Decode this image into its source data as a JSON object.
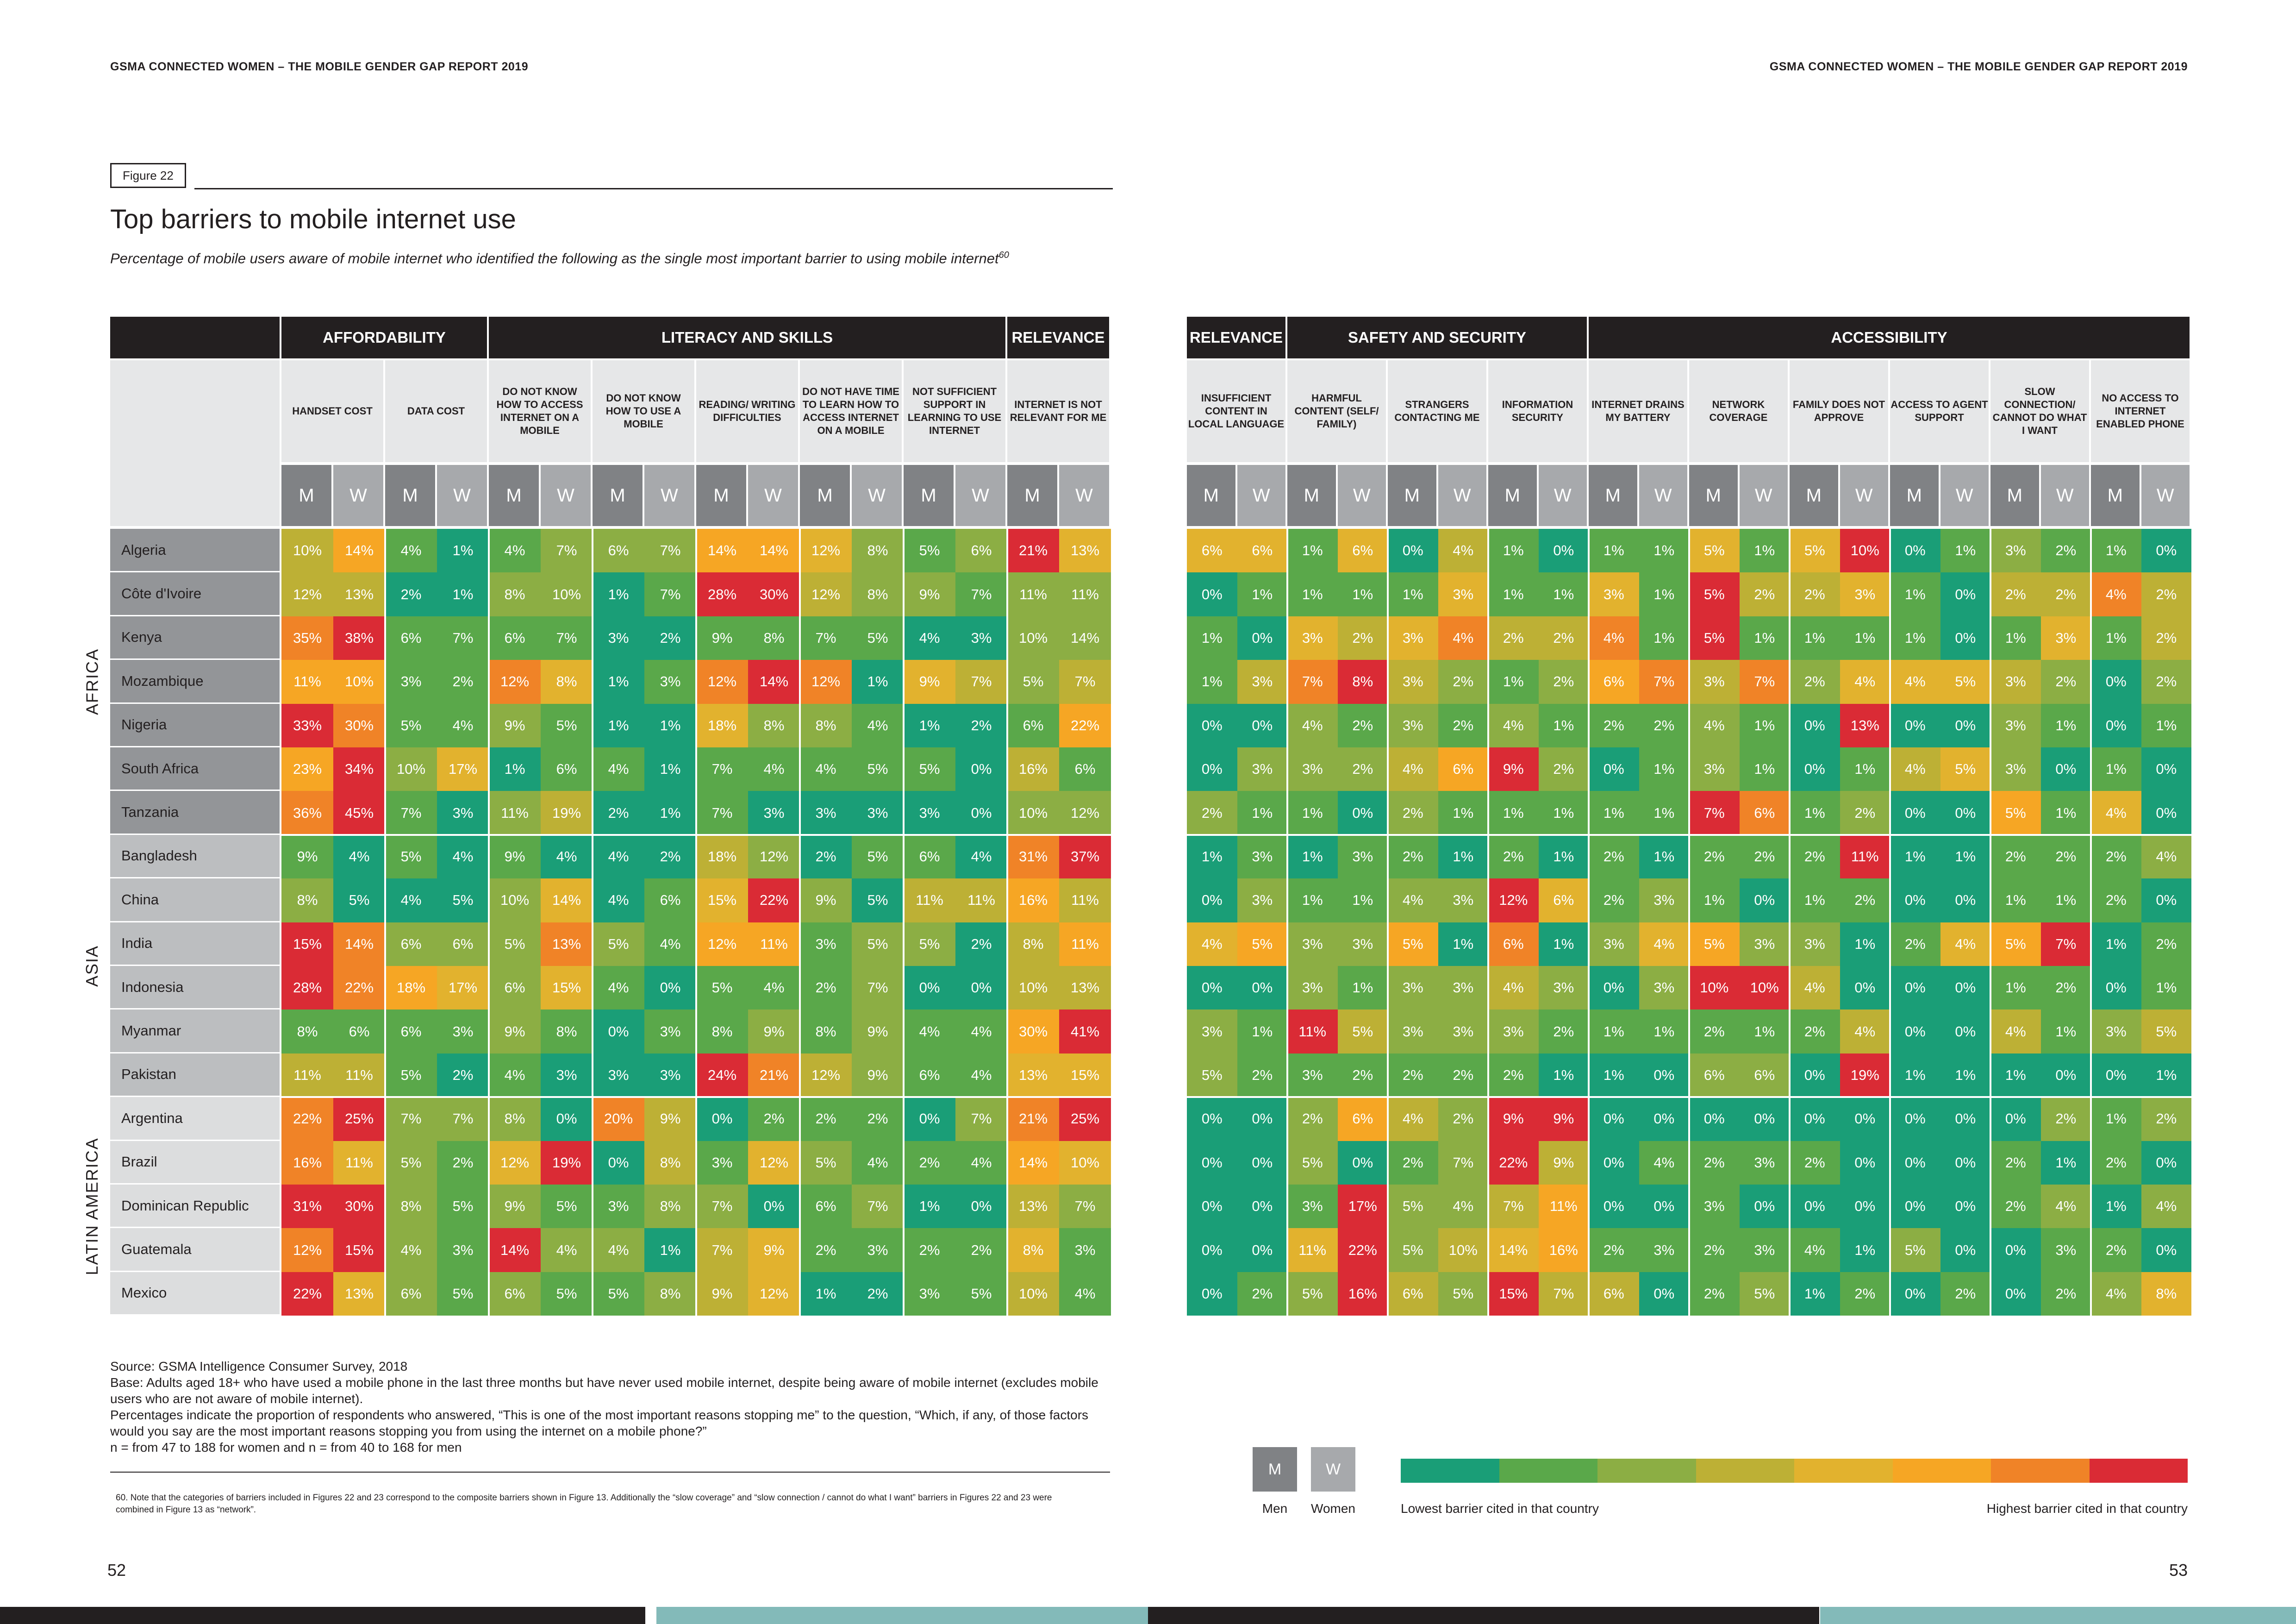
{
  "header": {
    "left": "GSMA CONNECTED WOMEN – THE MOBILE GENDER GAP REPORT 2019",
    "right": "GSMA CONNECTED WOMEN – THE MOBILE GENDER GAP REPORT 2019"
  },
  "figure_label": "Figure 22",
  "title": "Top barriers to mobile internet use",
  "subtitle": "Percentage of mobile users aware of mobile internet who identified the following as the single most important barrier to using mobile internet",
  "subtitle_sup": "60",
  "groups_left": [
    {
      "label": "AFFORDABILITY",
      "span": 2
    },
    {
      "label": "LITERACY AND SKILLS",
      "span": 5
    },
    {
      "label": "RELEVANCE",
      "span": 1
    }
  ],
  "groups_right": [
    {
      "label": "RELEVANCE",
      "span": 1
    },
    {
      "label": "SAFETY AND SECURITY",
      "span": 3
    },
    {
      "label": "ACCESSIBILITY",
      "span": 6
    }
  ],
  "columns_left": [
    "HANDSET COST",
    "DATA COST",
    "DO NOT KNOW HOW TO ACCESS INTERNET ON A MOBILE",
    "DO NOT KNOW HOW TO USE A MOBILE",
    "READING/ WRITING DIFFICULTIES",
    "DO NOT HAVE TIME TO LEARN HOW TO ACCESS INTERNET ON A MOBILE",
    "NOT SUFFICIENT SUPPORT IN LEARNING TO USE INTERNET",
    "INTERNET IS NOT RELEVANT FOR ME"
  ],
  "columns_right": [
    "INSUFFICIENT CONTENT IN LOCAL LANGUAGE",
    "HARMFUL CONTENT (SELF/ FAMILY)",
    "STRANGERS CONTACTING ME",
    "INFORMATION SECURITY",
    "INTERNET DRAINS MY BATTERY",
    "NETWORK COVERAGE",
    "FAMILY DOES NOT APPROVE",
    "ACCESS TO AGENT SUPPORT",
    "SLOW CONNECTION/ CANNOT DO WHAT I WANT",
    "NO ACCESS TO INTERNET ENABLED PHONE"
  ],
  "m_label": "M",
  "w_label": "W",
  "regions": [
    {
      "name": "AFRICA",
      "rows": 7
    },
    {
      "name": "ASIA",
      "rows": 6
    },
    {
      "name": "LATIN AMERICA",
      "rows": 5
    }
  ],
  "countries": [
    "Algeria",
    "Côte d'Ivoire",
    "Kenya",
    "Mozambique",
    "Nigeria",
    "South Africa",
    "Tanzania",
    "Bangladesh",
    "China",
    "India",
    "Indonesia",
    "Myanmar",
    "Pakistan",
    "Argentina",
    "Brazil",
    "Dominican Republic",
    "Guatemala",
    "Mexico"
  ],
  "left_values": [
    [
      "10%",
      "14%",
      "4%",
      "1%",
      "4%",
      "7%",
      "6%",
      "7%",
      "14%",
      "14%",
      "12%",
      "8%",
      "5%",
      "6%",
      "21%",
      "13%"
    ],
    [
      "12%",
      "13%",
      "2%",
      "1%",
      "8%",
      "10%",
      "1%",
      "7%",
      "28%",
      "30%",
      "12%",
      "8%",
      "9%",
      "7%",
      "11%",
      "11%"
    ],
    [
      "35%",
      "38%",
      "6%",
      "7%",
      "6%",
      "7%",
      "3%",
      "2%",
      "9%",
      "8%",
      "7%",
      "5%",
      "4%",
      "3%",
      "10%",
      "14%"
    ],
    [
      "11%",
      "10%",
      "3%",
      "2%",
      "12%",
      "8%",
      "1%",
      "3%",
      "12%",
      "14%",
      "12%",
      "1%",
      "9%",
      "7%",
      "5%",
      "7%"
    ],
    [
      "33%",
      "30%",
      "5%",
      "4%",
      "9%",
      "5%",
      "1%",
      "1%",
      "18%",
      "8%",
      "8%",
      "4%",
      "1%",
      "2%",
      "6%",
      "22%"
    ],
    [
      "23%",
      "34%",
      "10%",
      "17%",
      "1%",
      "6%",
      "4%",
      "1%",
      "7%",
      "4%",
      "4%",
      "5%",
      "5%",
      "0%",
      "16%",
      "6%"
    ],
    [
      "36%",
      "45%",
      "7%",
      "3%",
      "11%",
      "19%",
      "2%",
      "1%",
      "7%",
      "3%",
      "3%",
      "3%",
      "3%",
      "0%",
      "10%",
      "12%"
    ],
    [
      "9%",
      "4%",
      "5%",
      "4%",
      "9%",
      "4%",
      "4%",
      "2%",
      "18%",
      "12%",
      "2%",
      "5%",
      "6%",
      "4%",
      "31%",
      "37%"
    ],
    [
      "8%",
      "5%",
      "4%",
      "5%",
      "10%",
      "14%",
      "4%",
      "6%",
      "15%",
      "22%",
      "9%",
      "5%",
      "11%",
      "11%",
      "16%",
      "11%"
    ],
    [
      "15%",
      "14%",
      "6%",
      "6%",
      "5%",
      "13%",
      "5%",
      "4%",
      "12%",
      "11%",
      "3%",
      "5%",
      "5%",
      "2%",
      "8%",
      "11%"
    ],
    [
      "28%",
      "22%",
      "18%",
      "17%",
      "6%",
      "15%",
      "4%",
      "0%",
      "5%",
      "4%",
      "2%",
      "7%",
      "0%",
      "0%",
      "10%",
      "13%"
    ],
    [
      "8%",
      "6%",
      "6%",
      "3%",
      "9%",
      "8%",
      "0%",
      "3%",
      "8%",
      "9%",
      "8%",
      "9%",
      "4%",
      "4%",
      "30%",
      "41%"
    ],
    [
      "11%",
      "11%",
      "5%",
      "2%",
      "4%",
      "3%",
      "3%",
      "3%",
      "24%",
      "21%",
      "12%",
      "9%",
      "6%",
      "4%",
      "13%",
      "15%"
    ],
    [
      "22%",
      "25%",
      "7%",
      "7%",
      "8%",
      "0%",
      "20%",
      "9%",
      "0%",
      "2%",
      "2%",
      "2%",
      "0%",
      "7%",
      "21%",
      "25%"
    ],
    [
      "16%",
      "11%",
      "5%",
      "2%",
      "12%",
      "19%",
      "0%",
      "8%",
      "3%",
      "12%",
      "5%",
      "4%",
      "2%",
      "4%",
      "14%",
      "10%"
    ],
    [
      "31%",
      "30%",
      "8%",
      "5%",
      "9%",
      "5%",
      "3%",
      "8%",
      "7%",
      "0%",
      "6%",
      "7%",
      "1%",
      "0%",
      "13%",
      "7%"
    ],
    [
      "12%",
      "15%",
      "4%",
      "3%",
      "14%",
      "4%",
      "4%",
      "1%",
      "7%",
      "9%",
      "2%",
      "3%",
      "2%",
      "2%",
      "8%",
      "3%"
    ],
    [
      "22%",
      "13%",
      "6%",
      "5%",
      "6%",
      "5%",
      "5%",
      "8%",
      "9%",
      "12%",
      "1%",
      "2%",
      "3%",
      "5%",
      "10%",
      "4%"
    ]
  ],
  "right_values": [
    [
      "6%",
      "6%",
      "1%",
      "6%",
      "0%",
      "4%",
      "1%",
      "0%",
      "1%",
      "1%",
      "5%",
      "1%",
      "5%",
      "10%",
      "0%",
      "1%",
      "3%",
      "2%",
      "1%",
      "0%"
    ],
    [
      "0%",
      "1%",
      "1%",
      "1%",
      "1%",
      "3%",
      "1%",
      "1%",
      "3%",
      "1%",
      "5%",
      "2%",
      "2%",
      "3%",
      "1%",
      "0%",
      "2%",
      "2%",
      "4%",
      "2%"
    ],
    [
      "1%",
      "0%",
      "3%",
      "2%",
      "3%",
      "4%",
      "2%",
      "2%",
      "4%",
      "1%",
      "5%",
      "1%",
      "1%",
      "1%",
      "1%",
      "0%",
      "1%",
      "3%",
      "1%",
      "2%"
    ],
    [
      "1%",
      "3%",
      "7%",
      "8%",
      "3%",
      "2%",
      "1%",
      "2%",
      "6%",
      "7%",
      "3%",
      "7%",
      "2%",
      "4%",
      "4%",
      "5%",
      "3%",
      "2%",
      "0%",
      "2%"
    ],
    [
      "0%",
      "0%",
      "4%",
      "2%",
      "3%",
      "2%",
      "4%",
      "1%",
      "2%",
      "2%",
      "4%",
      "1%",
      "0%",
      "13%",
      "0%",
      "0%",
      "3%",
      "1%",
      "0%",
      "1%"
    ],
    [
      "0%",
      "3%",
      "3%",
      "2%",
      "4%",
      "6%",
      "9%",
      "2%",
      "0%",
      "1%",
      "3%",
      "1%",
      "0%",
      "1%",
      "4%",
      "5%",
      "3%",
      "0%",
      "1%",
      "0%"
    ],
    [
      "2%",
      "1%",
      "1%",
      "0%",
      "2%",
      "1%",
      "1%",
      "1%",
      "1%",
      "1%",
      "7%",
      "6%",
      "1%",
      "2%",
      "0%",
      "0%",
      "5%",
      "1%",
      "4%",
      "0%"
    ],
    [
      "1%",
      "3%",
      "1%",
      "3%",
      "2%",
      "1%",
      "2%",
      "1%",
      "2%",
      "1%",
      "2%",
      "2%",
      "2%",
      "11%",
      "1%",
      "1%",
      "2%",
      "2%",
      "2%",
      "4%"
    ],
    [
      "0%",
      "3%",
      "1%",
      "1%",
      "4%",
      "3%",
      "12%",
      "6%",
      "2%",
      "3%",
      "1%",
      "0%",
      "1%",
      "2%",
      "0%",
      "0%",
      "1%",
      "1%",
      "2%",
      "0%"
    ],
    [
      "4%",
      "5%",
      "3%",
      "3%",
      "5%",
      "1%",
      "6%",
      "1%",
      "3%",
      "4%",
      "5%",
      "3%",
      "3%",
      "1%",
      "2%",
      "4%",
      "5%",
      "7%",
      "1%",
      "2%"
    ],
    [
      "0%",
      "0%",
      "3%",
      "1%",
      "3%",
      "3%",
      "4%",
      "3%",
      "0%",
      "3%",
      "10%",
      "10%",
      "4%",
      "0%",
      "0%",
      "0%",
      "1%",
      "2%",
      "0%",
      "1%"
    ],
    [
      "3%",
      "1%",
      "11%",
      "5%",
      "3%",
      "3%",
      "3%",
      "2%",
      "1%",
      "1%",
      "2%",
      "1%",
      "2%",
      "4%",
      "0%",
      "0%",
      "4%",
      "1%",
      "3%",
      "5%"
    ],
    [
      "5%",
      "2%",
      "3%",
      "2%",
      "2%",
      "2%",
      "2%",
      "1%",
      "1%",
      "0%",
      "6%",
      "6%",
      "0%",
      "19%",
      "1%",
      "1%",
      "1%",
      "0%",
      "0%",
      "1%"
    ],
    [
      "0%",
      "0%",
      "2%",
      "6%",
      "4%",
      "2%",
      "9%",
      "9%",
      "0%",
      "0%",
      "0%",
      "0%",
      "0%",
      "0%",
      "0%",
      "0%",
      "0%",
      "2%",
      "1%",
      "2%"
    ],
    [
      "0%",
      "0%",
      "5%",
      "0%",
      "2%",
      "7%",
      "22%",
      "9%",
      "0%",
      "4%",
      "2%",
      "3%",
      "2%",
      "0%",
      "0%",
      "0%",
      "2%",
      "1%",
      "2%",
      "0%"
    ],
    [
      "0%",
      "0%",
      "3%",
      "17%",
      "5%",
      "4%",
      "7%",
      "11%",
      "0%",
      "0%",
      "3%",
      "0%",
      "0%",
      "0%",
      "0%",
      "0%",
      "2%",
      "4%",
      "1%",
      "4%"
    ],
    [
      "0%",
      "0%",
      "11%",
      "22%",
      "5%",
      "10%",
      "14%",
      "16%",
      "2%",
      "3%",
      "2%",
      "3%",
      "4%",
      "1%",
      "5%",
      "0%",
      "0%",
      "3%",
      "2%",
      "0%"
    ],
    [
      "0%",
      "2%",
      "5%",
      "16%",
      "6%",
      "5%",
      "15%",
      "7%",
      "6%",
      "0%",
      "2%",
      "5%",
      "1%",
      "2%",
      "0%",
      "2%",
      "0%",
      "2%",
      "4%",
      "8%"
    ]
  ],
  "colors": {
    "scale": [
      "#1a9e77",
      "#5aa84a",
      "#8cae44",
      "#bdb035",
      "#e2b22e",
      "#f6a624",
      "#f08327",
      "#da2b35"
    ],
    "m_header": "#808285",
    "w_header": "#a7a9ac",
    "africa_label_bg": "#939598",
    "asia_label_bg": "#bcbec0",
    "latam_label_bg": "#dcddde",
    "dark": "#231f20",
    "footer_teal": "#83bab9"
  },
  "notes": {
    "source": "Source: GSMA Intelligence Consumer Survey, 2018",
    "base": "Base: Adults aged 18+ who have used a mobile phone in the last three months but have never used mobile internet, despite being aware of mobile internet (excludes mobile users who are not aware of mobile internet).",
    "percentages": "Percentages indicate the proportion of respondents who answered, “This is one of the most important reasons stopping me” to the question, “Which, if any, of those factors would you say are the most important reasons stopping you from using the internet on a mobile phone?”",
    "n": "n = from 47 to 188 for women and n = from 40 to 168 for men"
  },
  "footnote": "60.  Note that the categories of barriers included in Figures 22 and 23 correspond to the composite barriers shown in Figure 13. Additionally the “slow coverage” and “slow connection / cannot do what I want” barriers in Figures 22 and 23 were combined in Figure 13 as “network”.",
  "legend": {
    "m": "M",
    "w": "W",
    "men": "Men",
    "women": "Women",
    "low": "Lowest barrier cited in that country",
    "high": "Highest barrier cited in that country"
  },
  "page_numbers": {
    "left": "52",
    "right": "53"
  }
}
